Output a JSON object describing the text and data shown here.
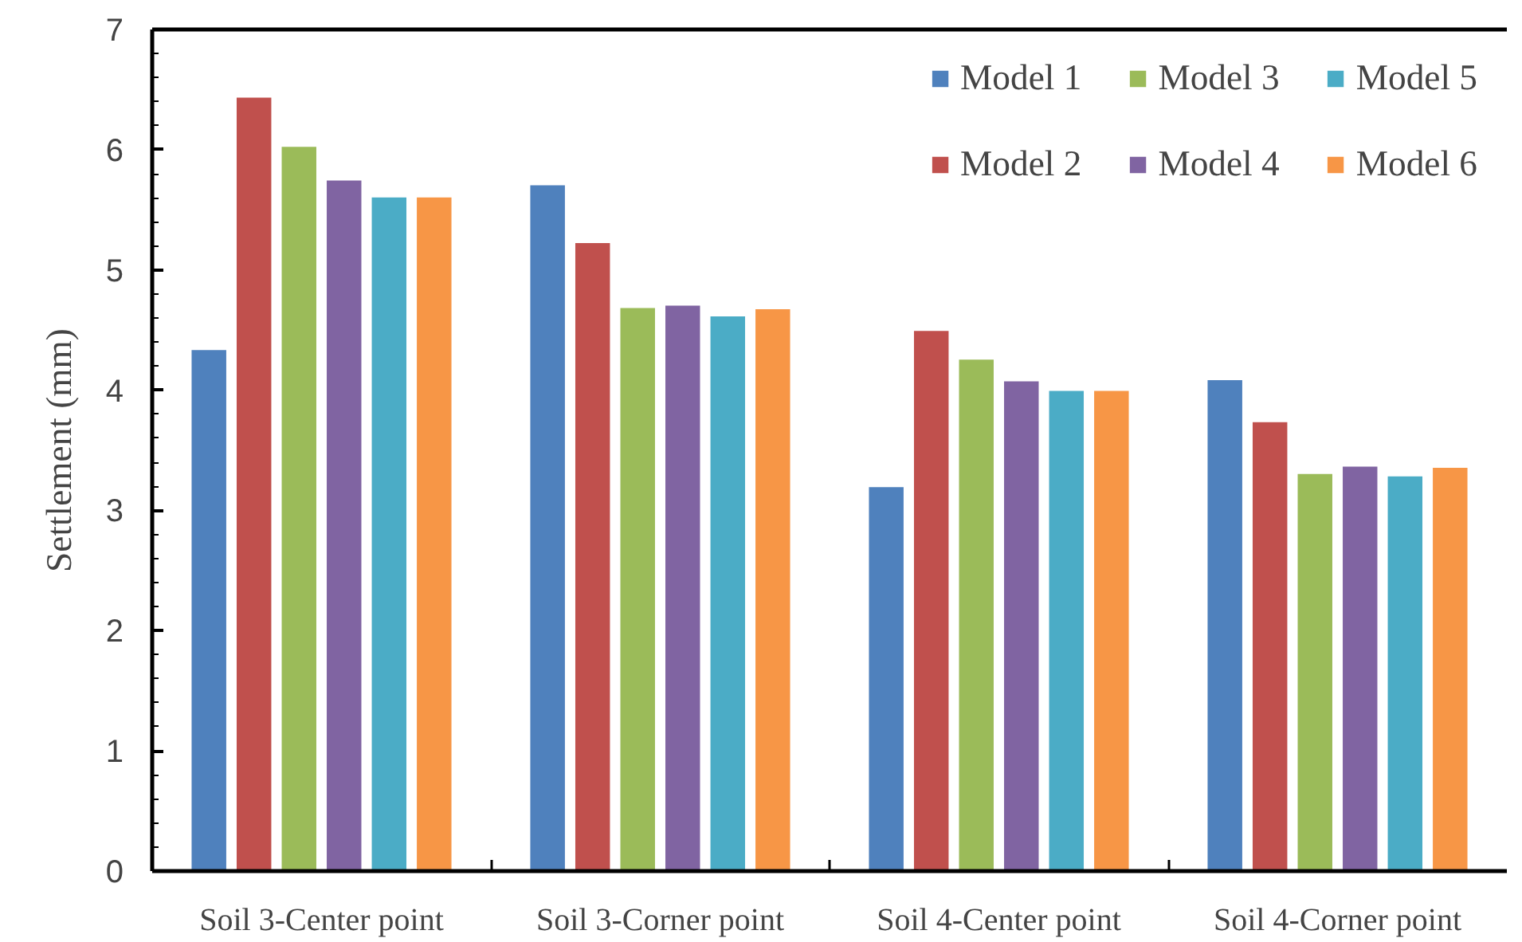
{
  "chart_data": {
    "type": "bar",
    "categories": [
      "Soil 3-Center point",
      "Soil 3-Corner point",
      "Soil 4-Center point",
      "Soil 4-Corner point"
    ],
    "ylabel": "Settlement (mm)",
    "ylim": [
      0,
      7
    ],
    "yticks": [
      0,
      1,
      2,
      3,
      4,
      5,
      6,
      7
    ],
    "series": [
      {
        "name": "Model 1",
        "color": "#4f81bd",
        "values": [
          4.34,
          5.71,
          3.2,
          4.09
        ]
      },
      {
        "name": "Model 2",
        "color": "#c0504d",
        "values": [
          6.44,
          5.23,
          4.5,
          3.74
        ]
      },
      {
        "name": "Model 3",
        "color": "#9bbb59",
        "values": [
          6.03,
          4.69,
          4.26,
          3.31
        ]
      },
      {
        "name": "Model 4",
        "color": "#8064a2",
        "values": [
          5.75,
          4.71,
          4.08,
          3.37
        ]
      },
      {
        "name": "Model 5",
        "color": "#4bacc6",
        "values": [
          5.61,
          4.62,
          4.0,
          3.29
        ]
      },
      {
        "name": "Model 6",
        "color": "#f79646",
        "values": [
          5.61,
          4.68,
          4.0,
          3.36
        ]
      }
    ],
    "legend": "top right",
    "grid": false
  }
}
